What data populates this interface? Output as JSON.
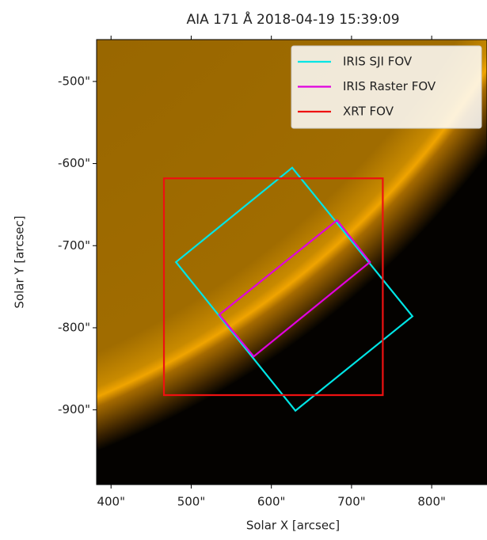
{
  "chart_data": {
    "type": "image-overlay",
    "title": "AIA 171 Å 2018-04-19 15:39:09",
    "x_label": "Solar X [arcsec]",
    "y_label": "Solar Y [arcsec]",
    "xlim": [
      382,
      869
    ],
    "ylim": [
      -991,
      -449
    ],
    "xticks": [
      {
        "value": 400,
        "label": "400\""
      },
      {
        "value": 500,
        "label": "500\""
      },
      {
        "value": 600,
        "label": "600\""
      },
      {
        "value": 700,
        "label": "700\""
      },
      {
        "value": 800,
        "label": "800\""
      }
    ],
    "yticks": [
      {
        "value": -500,
        "label": "-500\""
      },
      {
        "value": -600,
        "label": "-600\""
      },
      {
        "value": -700,
        "label": "-700\""
      },
      {
        "value": -800,
        "label": "-800\""
      },
      {
        "value": -900,
        "label": "-900\""
      }
    ],
    "legend": "upper right",
    "series": [
      {
        "name": "IRIS SJI FOV",
        "color": "#00e5e5",
        "x": [
          626,
          776,
          630,
          481
        ],
        "y": [
          -605,
          -786,
          -901,
          -720
        ]
      },
      {
        "name": "IRIS Raster FOV",
        "color": "#e000e0",
        "x": [
          682,
          723,
          578,
          535
        ],
        "y": [
          -669,
          -720,
          -835,
          -784
        ]
      },
      {
        "name": "XRT FOV",
        "color": "#ee1111",
        "x": [
          466,
          739,
          739,
          466
        ],
        "y": [
          -618,
          -618,
          -882,
          -882
        ]
      }
    ]
  }
}
